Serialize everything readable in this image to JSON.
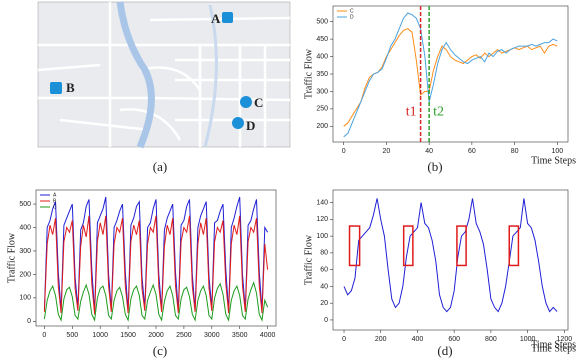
{
  "map": {
    "labels": [
      "A",
      "B",
      "C",
      "D"
    ],
    "caption": "(a)"
  },
  "chart_data": [
    {
      "type": "line",
      "caption": "(b)",
      "ylabel": "Traffic Flow",
      "xlabel": "Time Steps",
      "x": [
        0,
        2,
        4,
        6,
        8,
        10,
        12,
        14,
        16,
        18,
        20,
        22,
        24,
        26,
        28,
        30,
        32,
        34,
        36,
        38,
        40,
        42,
        44,
        46,
        48,
        50,
        52,
        54,
        56,
        58,
        60,
        62,
        64,
        66,
        68,
        70,
        72,
        74,
        76,
        78,
        80,
        82,
        84,
        86,
        88,
        90,
        92,
        94,
        96,
        98,
        100
      ],
      "series": [
        {
          "name": "C",
          "color": "#ff8c1a",
          "values": [
            200,
            210,
            230,
            250,
            270,
            310,
            340,
            350,
            355,
            370,
            400,
            420,
            440,
            460,
            475,
            480,
            470,
            390,
            290,
            300,
            300,
            360,
            400,
            430,
            420,
            400,
            390,
            385,
            380,
            390,
            400,
            405,
            395,
            410,
            400,
            410,
            420,
            410,
            415,
            420,
            425,
            420,
            425,
            430,
            420,
            425,
            430,
            410,
            430,
            435,
            430
          ]
        },
        {
          "name": "D",
          "color": "#4aa3df",
          "values": [
            170,
            180,
            210,
            240,
            270,
            300,
            330,
            350,
            355,
            365,
            395,
            430,
            450,
            480,
            510,
            525,
            520,
            510,
            480,
            400,
            270,
            320,
            380,
            420,
            440,
            420,
            405,
            395,
            385,
            380,
            390,
            395,
            400,
            385,
            410,
            400,
            415,
            420,
            410,
            420,
            425,
            430,
            430,
            430,
            435,
            430,
            435,
            440,
            440,
            450,
            445
          ]
        }
      ],
      "vlines": [
        {
          "x": 36,
          "label": "t1",
          "color": "#d62728"
        },
        {
          "x": 40,
          "label": "t2",
          "color": "#2ca02c"
        }
      ],
      "xlim": [
        -5,
        105
      ],
      "xticks": [
        0,
        20,
        40,
        60,
        80,
        100
      ],
      "ylim": [
        155,
        545
      ],
      "yticks": [
        200,
        250,
        300,
        350,
        400,
        450,
        500
      ]
    },
    {
      "type": "line",
      "caption": "(c)",
      "ylabel": "Traffic Flow",
      "xlabel": "Time Steps",
      "x": [
        0,
        50,
        100,
        150,
        200,
        250,
        300,
        350,
        400,
        450,
        500,
        550,
        600,
        650,
        700,
        750,
        800,
        850,
        900,
        950,
        1000,
        1050,
        1100,
        1150,
        1200,
        1250,
        1300,
        1350,
        1400,
        1450,
        1500,
        1550,
        1600,
        1650,
        1700,
        1750,
        1800,
        1850,
        1900,
        1950,
        2000,
        2050,
        2100,
        2150,
        2200,
        2250,
        2300,
        2350,
        2400,
        2450,
        2500,
        2550,
        2600,
        2650,
        2700,
        2750,
        2800,
        2850,
        2900,
        2950,
        3000,
        3050,
        3100,
        3150,
        3200,
        3250,
        3300,
        3350,
        3400,
        3450,
        3500,
        3550,
        3600,
        3650,
        3700,
        3750,
        3800,
        3850,
        3900,
        3950,
        4000
      ],
      "series": [
        {
          "name": "A",
          "color": "#1f1fd6",
          "values": [
            50,
            400,
            430,
            480,
            510,
            210,
            45,
            410,
            440,
            470,
            500,
            190,
            55,
            390,
            420,
            490,
            520,
            220,
            40,
            420,
            450,
            480,
            530,
            200,
            50,
            400,
            430,
            470,
            500,
            210,
            45,
            410,
            440,
            490,
            510,
            190,
            55,
            400,
            420,
            480,
            520,
            200,
            50,
            390,
            440,
            470,
            500,
            210,
            45,
            410,
            430,
            490,
            520,
            200,
            50,
            400,
            450,
            480,
            510,
            190,
            55,
            420,
            430,
            470,
            500,
            220,
            45,
            400,
            440,
            490,
            530,
            200,
            50,
            410,
            430,
            480,
            520,
            210,
            45,
            400,
            380
          ]
        },
        {
          "name": "B",
          "color": "#e01b1b",
          "values": [
            40,
            330,
            410,
            370,
            440,
            150,
            35,
            340,
            400,
            380,
            430,
            140,
            45,
            320,
            410,
            360,
            450,
            160,
            30,
            340,
            420,
            370,
            450,
            150,
            40,
            330,
            400,
            380,
            440,
            150,
            35,
            340,
            410,
            370,
            430,
            140,
            45,
            330,
            400,
            380,
            450,
            150,
            40,
            320,
            410,
            370,
            440,
            150,
            35,
            340,
            400,
            380,
            450,
            150,
            40,
            330,
            420,
            370,
            440,
            140,
            45,
            340,
            400,
            380,
            430,
            160,
            35,
            330,
            410,
            370,
            450,
            150,
            40,
            340,
            400,
            380,
            440,
            150,
            35,
            330,
            220
          ]
        },
        {
          "name": "C",
          "color": "#1e9b1e",
          "values": [
            10,
            90,
            130,
            150,
            110,
            30,
            5,
            95,
            135,
            145,
            105,
            25,
            10,
            85,
            125,
            155,
            115,
            30,
            5,
            100,
            140,
            150,
            110,
            25,
            10,
            90,
            130,
            145,
            105,
            30,
            5,
            95,
            135,
            150,
            110,
            25,
            10,
            90,
            125,
            155,
            115,
            30,
            5,
            85,
            130,
            150,
            110,
            25,
            10,
            95,
            135,
            145,
            105,
            30,
            5,
            90,
            130,
            150,
            110,
            25,
            10,
            100,
            140,
            160,
            115,
            30,
            5,
            90,
            130,
            150,
            110,
            25,
            10,
            95,
            135,
            165,
            120,
            30,
            5,
            90,
            60
          ]
        }
      ],
      "xlim": [
        -150,
        4150
      ],
      "xticks": [
        0,
        500,
        1000,
        1500,
        2000,
        2500,
        3000,
        3500,
        4000
      ],
      "ylim": [
        -20,
        560
      ],
      "yticks": [
        0,
        100,
        200,
        300,
        400,
        500
      ]
    },
    {
      "type": "line",
      "caption": "(d)",
      "ylabel": "Traffic Flow",
      "xlabel": "Time Steps",
      "color": "#1f1fd6",
      "x": [
        0,
        20,
        40,
        60,
        80,
        100,
        120,
        140,
        160,
        180,
        200,
        220,
        240,
        260,
        280,
        300,
        320,
        340,
        360,
        380,
        400,
        420,
        440,
        460,
        480,
        500,
        520,
        540,
        560,
        580,
        600,
        620,
        640,
        660,
        680,
        700,
        720,
        740,
        760,
        780,
        800,
        820,
        840,
        860,
        880,
        900,
        920,
        940,
        960,
        980,
        1000,
        1020,
        1040,
        1060,
        1080,
        1100,
        1120,
        1140,
        1160
      ],
      "values": [
        40,
        30,
        35,
        50,
        95,
        100,
        105,
        110,
        125,
        145,
        120,
        100,
        60,
        25,
        15,
        20,
        40,
        75,
        100,
        105,
        110,
        140,
        115,
        110,
        95,
        70,
        30,
        15,
        10,
        15,
        35,
        75,
        100,
        105,
        120,
        145,
        115,
        105,
        90,
        60,
        25,
        15,
        10,
        20,
        40,
        70,
        100,
        105,
        110,
        145,
        115,
        110,
        95,
        70,
        40,
        20,
        10,
        15,
        10
      ],
      "highlights": [
        {
          "x": [
            30,
            85
          ],
          "y": [
            65,
            112
          ]
        },
        {
          "x": [
            325,
            375
          ],
          "y": [
            65,
            112
          ]
        },
        {
          "x": [
            615,
            665
          ],
          "y": [
            65,
            112
          ]
        },
        {
          "x": [
            900,
            950
          ],
          "y": [
            65,
            112
          ]
        }
      ],
      "xlim": [
        -60,
        1220
      ],
      "xticks": [
        0,
        200,
        400,
        600,
        800,
        1000,
        1200
      ],
      "ylim": [
        -12,
        155
      ],
      "yticks": [
        0,
        20,
        40,
        60,
        80,
        100,
        120,
        140
      ]
    }
  ]
}
